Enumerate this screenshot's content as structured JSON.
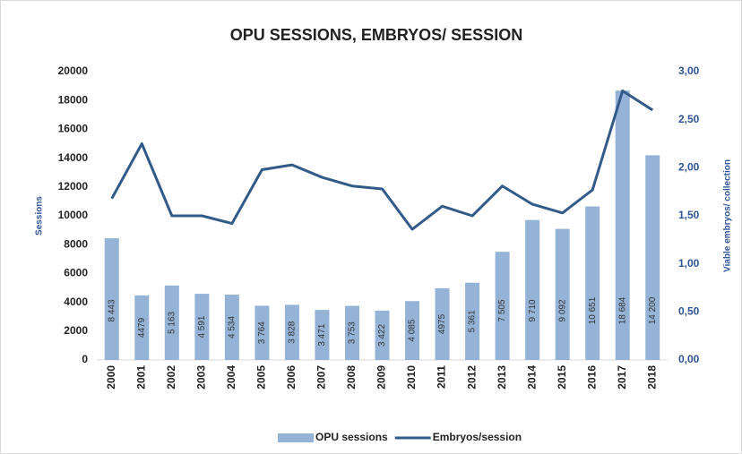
{
  "chart_data": {
    "type": "bar-line",
    "title": "OPU SESSIONS, EMBRYOS/ SESSION",
    "ylabel": "Sessions",
    "y2label": "Viable embryos/ collection",
    "categories": [
      "2000",
      "2001",
      "2002",
      "2003",
      "2004",
      "2005",
      "2006",
      "2007",
      "2008",
      "2009",
      "2010",
      "2011",
      "2012",
      "2013",
      "2014",
      "2015",
      "2016",
      "2017",
      "2018"
    ],
    "series": [
      {
        "name": "OPU sessions",
        "type": "bar",
        "color": "#95b3d7",
        "values": [
          8443,
          4479,
          5163,
          4591,
          4534,
          3764,
          3828,
          3471,
          3753,
          3422,
          4085,
          4975,
          5361,
          7505,
          9710,
          9092,
          10651,
          18684,
          14200
        ],
        "value_labels": [
          "8 443",
          "4479",
          "5 163",
          "4 591",
          "4 534",
          "3 764",
          "3 828",
          "3 471",
          "3 753",
          "3 422",
          "4 085",
          "4975",
          "5 361",
          "7 505",
          "9 710",
          "9 092",
          "10 651",
          "18 684",
          "14 200"
        ]
      },
      {
        "name": "Embryos/session",
        "type": "line",
        "axis": "y2",
        "color": "#335b8a",
        "values": [
          1.68,
          2.25,
          1.5,
          1.5,
          1.42,
          1.98,
          2.03,
          1.9,
          1.81,
          1.78,
          1.36,
          1.6,
          1.5,
          1.81,
          1.62,
          1.53,
          1.77,
          2.8,
          2.6
        ]
      }
    ],
    "ylim": [
      0,
      20000
    ],
    "yticks": [
      0,
      2000,
      4000,
      6000,
      8000,
      10000,
      12000,
      14000,
      16000,
      18000,
      20000
    ],
    "y2lim": [
      0,
      3
    ],
    "y2ticks": [
      {
        "value": 0,
        "label": "0,00"
      },
      {
        "value": 0.5,
        "label": "0,50"
      },
      {
        "value": 1,
        "label": "1,00"
      },
      {
        "value": 1.5,
        "label": "1,50"
      },
      {
        "value": 2,
        "label": "2,00"
      },
      {
        "value": 2.5,
        "label": "2,50"
      },
      {
        "value": 3,
        "label": "3,00"
      }
    ],
    "grid": false,
    "legend": "bottom"
  }
}
